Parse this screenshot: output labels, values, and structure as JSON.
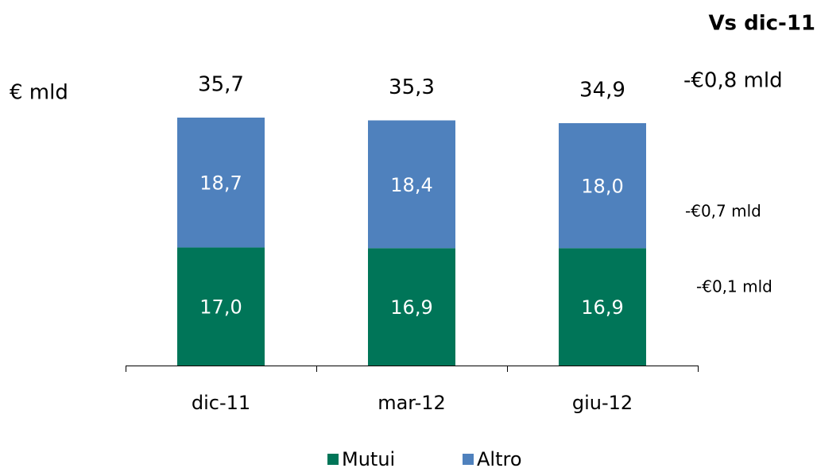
{
  "chart_data": {
    "type": "stacked_bar",
    "unit_label": "€ mld",
    "categories": [
      "dic-11",
      "mar-12",
      "giu-12"
    ],
    "series": [
      {
        "name": "Mutui",
        "color": "#007558",
        "values": [
          17.0,
          16.9,
          16.9
        ],
        "value_labels": [
          "17,0",
          "16,9",
          "16,9"
        ]
      },
      {
        "name": "Altro",
        "color": "#4f81bd",
        "values": [
          18.7,
          18.4,
          18.0
        ],
        "value_labels": [
          "18,7",
          "18,4",
          "18,0"
        ]
      }
    ],
    "totals": [
      35.7,
      35.3,
      34.9
    ],
    "total_labels": [
      "35,7",
      "35,3",
      "34,9"
    ],
    "annotations": [
      "Vs dic-11",
      "-€0,8 mld",
      "-€0,7 mld",
      "-€0,1 mld"
    ]
  }
}
